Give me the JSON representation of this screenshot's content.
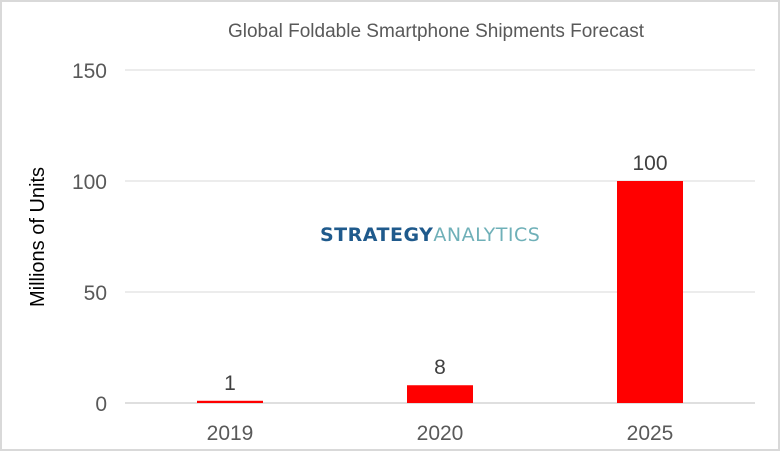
{
  "chart_data": {
    "type": "bar",
    "title": "Global Foldable Smartphone Shipments Forecast",
    "xlabel": "",
    "ylabel": "Millions of Units",
    "categories": [
      "2019",
      "2020",
      "2025"
    ],
    "values": [
      1,
      8,
      100
    ],
    "data_labels": [
      "1",
      "8",
      "100"
    ],
    "ylim": [
      0,
      150
    ],
    "yticks": [
      0,
      50,
      100,
      150
    ],
    "ytick_labels": [
      "0",
      "50",
      "100",
      "150"
    ],
    "grid": true,
    "bar_color": "#ff0000",
    "legend": "none"
  },
  "watermark": {
    "part1": "STRATEGY",
    "part2": "ANALYTICS"
  }
}
